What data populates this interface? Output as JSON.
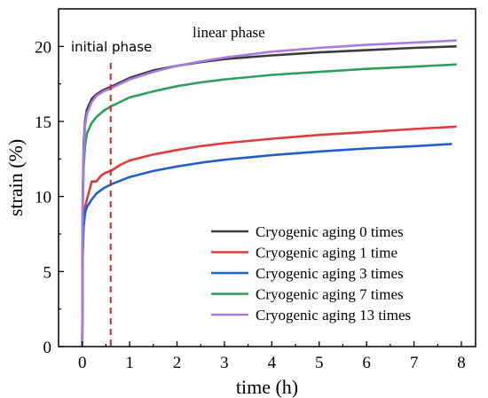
{
  "chart_data": {
    "type": "line",
    "title": "",
    "xlabel": "time (h)",
    "ylabel": "strain (%)",
    "xlim": [
      -0.5,
      8.3
    ],
    "ylim": [
      0,
      22.5
    ],
    "xticks": [
      0,
      1,
      2,
      3,
      4,
      5,
      6,
      7,
      8
    ],
    "yticks": [
      0,
      5,
      10,
      15,
      20
    ],
    "grid": false,
    "legend_position": "bottom-right",
    "annotations": [
      {
        "text": "initial phase"
      },
      {
        "text": "linear phase"
      }
    ],
    "phase_divider_x": 0.6,
    "series": [
      {
        "name": "Cryogenic aging 0 times",
        "color": "#3a3a3a",
        "x": [
          0,
          0.01,
          0.03,
          0.06,
          0.1,
          0.2,
          0.3,
          0.45,
          0.6,
          0.8,
          1,
          1.5,
          2,
          2.5,
          3,
          4,
          5,
          6,
          7,
          7.9
        ],
        "y": [
          0,
          10,
          13.5,
          15,
          15.8,
          16.5,
          16.8,
          17.1,
          17.3,
          17.6,
          17.9,
          18.4,
          18.7,
          18.95,
          19.15,
          19.4,
          19.6,
          19.75,
          19.9,
          20.0
        ]
      },
      {
        "name": "Cryogenic aging 1 time",
        "color": "#e03b3b",
        "x": [
          0,
          0.01,
          0.03,
          0.06,
          0.1,
          0.15,
          0.2,
          0.25,
          0.3,
          0.35,
          0.4,
          0.5,
          0.6,
          0.7,
          0.8,
          1,
          1.5,
          2,
          2.5,
          3,
          4,
          5,
          6,
          7,
          7.9
        ],
        "y": [
          0,
          6.5,
          8.5,
          9.3,
          9.8,
          10.4,
          11,
          11,
          11,
          11.2,
          11.4,
          11.6,
          11.7,
          11.9,
          12.1,
          12.4,
          12.8,
          13.1,
          13.35,
          13.55,
          13.85,
          14.1,
          14.3,
          14.5,
          14.65
        ]
      },
      {
        "name": "Cryogenic aging 3 times",
        "color": "#1f5fcf",
        "x": [
          0,
          0.01,
          0.03,
          0.06,
          0.1,
          0.2,
          0.3,
          0.45,
          0.6,
          0.8,
          1,
          1.5,
          2,
          2.5,
          3,
          4,
          5,
          6,
          7,
          7.8
        ],
        "y": [
          0,
          6,
          8,
          8.9,
          9.3,
          9.8,
          10.2,
          10.55,
          10.8,
          11.05,
          11.3,
          11.7,
          12.0,
          12.25,
          12.45,
          12.75,
          13.0,
          13.2,
          13.35,
          13.5
        ]
      },
      {
        "name": "Cryogenic aging 7 times",
        "color": "#2e9e5e",
        "x": [
          0,
          0.01,
          0.03,
          0.06,
          0.1,
          0.2,
          0.3,
          0.45,
          0.6,
          0.8,
          1,
          1.5,
          2,
          2.5,
          3,
          4,
          5,
          6,
          7,
          7.9
        ],
        "y": [
          0,
          9,
          12,
          13.4,
          14.2,
          14.9,
          15.3,
          15.7,
          16.0,
          16.3,
          16.6,
          17.0,
          17.35,
          17.6,
          17.8,
          18.1,
          18.3,
          18.5,
          18.65,
          18.8
        ]
      },
      {
        "name": "Cryogenic aging 13 times",
        "color": "#a87be0",
        "x": [
          0,
          0.01,
          0.03,
          0.06,
          0.1,
          0.2,
          0.3,
          0.45,
          0.6,
          0.8,
          1,
          1.5,
          2,
          2.5,
          3,
          4,
          5,
          6,
          7,
          7.9
        ],
        "y": [
          0,
          9.5,
          13,
          14.7,
          15.5,
          16.3,
          16.7,
          17.0,
          17.2,
          17.5,
          17.8,
          18.3,
          18.7,
          19.0,
          19.25,
          19.65,
          19.9,
          20.1,
          20.25,
          20.4
        ]
      }
    ]
  }
}
